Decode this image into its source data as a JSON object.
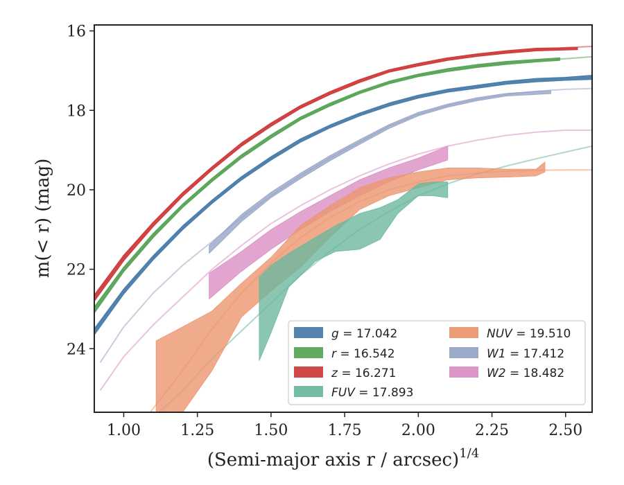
{
  "chart_data": {
    "type": "line",
    "xlabel": "(Semi-major axis r / arcsec)",
    "xlabel_sup": "1/4",
    "ylabel": "m(< r) (mag)",
    "xlim": [
      0.9,
      2.59
    ],
    "ylim": [
      25.6,
      15.85
    ],
    "y_inverted": true,
    "x_ticks": [
      1.0,
      1.25,
      1.5,
      1.75,
      2.0,
      2.25,
      2.5
    ],
    "x_tick_labels": [
      "1.00",
      "1.25",
      "1.50",
      "1.75",
      "2.00",
      "2.25",
      "2.50"
    ],
    "y_ticks": [
      16,
      18,
      20,
      22,
      24
    ],
    "y_tick_labels": [
      "16",
      "18",
      "20",
      "22",
      "24"
    ],
    "grid": false,
    "legend_placement": "lower-right",
    "legend": [
      {
        "band": "g",
        "value": "17.042",
        "color": "#4c7eab"
      },
      {
        "band": "r",
        "value": "16.542",
        "color": "#5aa55a"
      },
      {
        "band": "z",
        "value": "16.271",
        "color": "#d03d3d"
      },
      {
        "band": "FUV",
        "value": "17.893",
        "color": "#6db89f"
      },
      {
        "band": "NUV",
        "value": "19.510",
        "color": "#ec9670"
      },
      {
        "band": "W1",
        "value": "17.412",
        "color": "#97a5c7"
      },
      {
        "band": "W2",
        "value": "18.482",
        "color": "#da8ec4"
      }
    ],
    "series": [
      {
        "band": "z",
        "color": "#d03d3d",
        "model": {
          "x": [
            0.9,
            1.0,
            1.1,
            1.2,
            1.3,
            1.4,
            1.5,
            1.6,
            1.7,
            1.8,
            1.9,
            2.0,
            2.1,
            2.2,
            2.3,
            2.4,
            2.5,
            2.59
          ],
          "y": [
            22.7,
            21.7,
            20.85,
            20.1,
            19.45,
            18.85,
            18.35,
            17.9,
            17.55,
            17.25,
            17.0,
            16.85,
            16.7,
            16.6,
            16.52,
            16.47,
            16.42,
            16.39
          ]
        },
        "band_x": [
          0.9,
          1.0,
          1.1,
          1.2,
          1.3,
          1.4,
          1.5,
          1.6,
          1.7,
          1.8,
          1.9,
          2.0,
          2.1,
          2.2,
          2.3,
          2.4,
          2.54
        ],
        "band_lo": [
          22.65,
          21.65,
          20.82,
          20.07,
          19.42,
          18.82,
          18.32,
          17.88,
          17.53,
          17.23,
          16.98,
          16.82,
          16.68,
          16.58,
          16.5,
          16.44,
          16.42
        ],
        "band_hi": [
          22.8,
          21.78,
          20.92,
          20.16,
          19.5,
          18.9,
          18.4,
          17.95,
          17.6,
          17.3,
          17.04,
          16.88,
          16.74,
          16.64,
          16.56,
          16.5,
          16.47
        ]
      },
      {
        "band": "r",
        "color": "#5aa55a",
        "model": {
          "x": [
            0.9,
            1.0,
            1.1,
            1.2,
            1.3,
            1.4,
            1.5,
            1.6,
            1.7,
            1.8,
            1.9,
            2.0,
            2.1,
            2.2,
            2.3,
            2.4,
            2.5,
            2.59
          ],
          "y": [
            23.0,
            22.0,
            21.15,
            20.4,
            19.75,
            19.15,
            18.65,
            18.2,
            17.85,
            17.55,
            17.3,
            17.12,
            16.98,
            16.88,
            16.8,
            16.74,
            16.7,
            16.65
          ]
        },
        "band_x": [
          0.9,
          1.0,
          1.1,
          1.2,
          1.3,
          1.4,
          1.5,
          1.6,
          1.7,
          1.8,
          1.9,
          2.0,
          2.1,
          2.2,
          2.3,
          2.4,
          2.48
        ],
        "band_lo": [
          22.95,
          21.95,
          21.1,
          20.36,
          19.71,
          19.12,
          18.62,
          18.17,
          17.82,
          17.52,
          17.27,
          17.09,
          16.95,
          16.85,
          16.77,
          16.72,
          16.68
        ],
        "band_hi": [
          23.1,
          22.06,
          21.2,
          20.44,
          19.79,
          19.2,
          18.7,
          18.24,
          17.89,
          17.58,
          17.33,
          17.15,
          17.02,
          16.92,
          16.84,
          16.78,
          16.74
        ]
      },
      {
        "band": "g",
        "color": "#4c7eab",
        "model": {
          "x": [
            0.9,
            1.0,
            1.1,
            1.2,
            1.3,
            1.4,
            1.5,
            1.6,
            1.7,
            1.8,
            1.9,
            2.0,
            2.1,
            2.2,
            2.3,
            2.4,
            2.5,
            2.59
          ],
          "y": [
            23.55,
            22.55,
            21.7,
            20.95,
            20.3,
            19.7,
            19.2,
            18.75,
            18.4,
            18.1,
            17.85,
            17.65,
            17.5,
            17.4,
            17.3,
            17.24,
            17.2,
            17.18
          ]
        },
        "band_x": [
          0.9,
          1.0,
          1.1,
          1.2,
          1.3,
          1.4,
          1.5,
          1.6,
          1.7,
          1.8,
          1.9,
          2.0,
          2.1,
          2.2,
          2.3,
          2.4,
          2.5,
          2.59
        ],
        "band_lo": [
          23.5,
          22.5,
          21.66,
          20.91,
          20.26,
          19.67,
          19.17,
          18.72,
          18.37,
          18.07,
          17.82,
          17.62,
          17.47,
          17.37,
          17.27,
          17.2,
          17.17,
          17.12
        ],
        "band_hi": [
          23.65,
          22.62,
          21.76,
          21.0,
          20.34,
          19.75,
          19.25,
          18.8,
          18.44,
          18.14,
          17.89,
          17.69,
          17.54,
          17.44,
          17.34,
          17.28,
          17.24,
          17.22
        ]
      },
      {
        "band": "W1",
        "color": "#97a5c7",
        "model": {
          "x": [
            0.92,
            1.0,
            1.1,
            1.2,
            1.3,
            1.4,
            1.5,
            1.6,
            1.7,
            1.8,
            1.9,
            2.0,
            2.1,
            2.2,
            2.3,
            2.4,
            2.5,
            2.59
          ],
          "y": [
            24.35,
            23.45,
            22.6,
            21.9,
            21.3,
            20.7,
            20.15,
            19.65,
            19.2,
            18.8,
            18.4,
            18.1,
            17.88,
            17.72,
            17.6,
            17.52,
            17.47,
            17.45
          ]
        },
        "band_x": [
          1.29,
          1.4,
          1.5,
          1.6,
          1.7,
          1.8,
          1.9,
          2.0,
          2.1,
          2.2,
          2.3,
          2.45
        ],
        "band_lo": [
          21.4,
          20.62,
          20.06,
          19.58,
          19.14,
          18.74,
          18.36,
          18.05,
          17.84,
          17.68,
          17.57,
          17.5
        ],
        "band_hi": [
          21.6,
          20.8,
          20.2,
          19.72,
          19.27,
          18.86,
          18.46,
          18.14,
          17.92,
          17.76,
          17.64,
          17.58
        ]
      },
      {
        "band": "W2",
        "color": "#da8ec4",
        "model": {
          "x": [
            0.92,
            1.0,
            1.1,
            1.2,
            1.3,
            1.4,
            1.5,
            1.6,
            1.7,
            1.8,
            1.9,
            2.0,
            2.1,
            2.2,
            2.3,
            2.4,
            2.5,
            2.59
          ],
          "y": [
            25.05,
            24.2,
            23.4,
            22.7,
            22.0,
            21.4,
            20.85,
            20.4,
            20.0,
            19.65,
            19.35,
            19.1,
            18.9,
            18.75,
            18.63,
            18.55,
            18.5,
            18.5
          ]
        },
        "band_x": [
          1.29,
          1.4,
          1.5,
          1.6,
          1.7,
          1.8,
          1.9,
          2.0,
          2.1
        ],
        "band_lo": [
          22.1,
          21.55,
          21.0,
          20.55,
          20.15,
          19.75,
          19.45,
          19.2,
          18.9
        ],
        "band_hi": [
          22.75,
          22.05,
          21.5,
          21.0,
          20.55,
          20.15,
          19.8,
          19.5,
          19.25
        ]
      },
      {
        "band": "NUV",
        "color": "#ec9670",
        "model": {
          "x": [
            1.09,
            1.2,
            1.3,
            1.4,
            1.5,
            1.6,
            1.7,
            1.8,
            1.9,
            2.0,
            2.1,
            2.2,
            2.3,
            2.4,
            2.5,
            2.59
          ],
          "y": [
            25.6,
            24.55,
            23.5,
            22.6,
            21.85,
            21.2,
            20.7,
            20.3,
            20.0,
            19.8,
            19.65,
            19.58,
            19.53,
            19.51,
            19.5,
            19.5
          ]
        },
        "band_x": [
          1.11,
          1.2,
          1.3,
          1.4,
          1.5,
          1.6,
          1.7,
          1.8,
          1.9,
          2.0,
          2.1,
          2.2,
          2.3,
          2.4,
          2.43
        ],
        "band_lo": [
          23.8,
          23.45,
          23.05,
          22.35,
          21.7,
          20.9,
          20.4,
          19.95,
          19.7,
          19.55,
          19.45,
          19.45,
          19.48,
          19.48,
          19.3
        ],
        "band_hi": [
          25.6,
          25.6,
          24.55,
          23.2,
          22.55,
          21.95,
          21.2,
          20.5,
          20.15,
          19.95,
          19.75,
          19.7,
          19.68,
          19.65,
          19.55
        ]
      },
      {
        "band": "FUV",
        "color": "#6db89f",
        "model": {
          "x": [
            1.12,
            1.2,
            1.3,
            1.4,
            1.5,
            1.6,
            1.7,
            1.8,
            1.9,
            2.0,
            2.1,
            2.2,
            2.3,
            2.4,
            2.5,
            2.59
          ],
          "y": [
            25.6,
            25.05,
            24.25,
            23.55,
            22.85,
            22.15,
            21.55,
            21.0,
            20.55,
            20.15,
            19.85,
            19.6,
            19.4,
            19.22,
            19.05,
            18.9
          ]
        },
        "band_x": [
          1.46,
          1.5,
          1.56,
          1.65,
          1.72,
          1.8,
          1.87,
          1.93,
          2.0,
          2.05,
          2.1
        ],
        "band_lo": [
          22.2,
          21.9,
          21.6,
          21.2,
          20.9,
          20.6,
          20.45,
          20.25,
          19.85,
          19.8,
          19.8
        ],
        "band_hi": [
          24.3,
          23.6,
          22.45,
          21.8,
          21.55,
          21.5,
          21.25,
          20.6,
          20.15,
          20.15,
          20.2
        ]
      }
    ]
  }
}
